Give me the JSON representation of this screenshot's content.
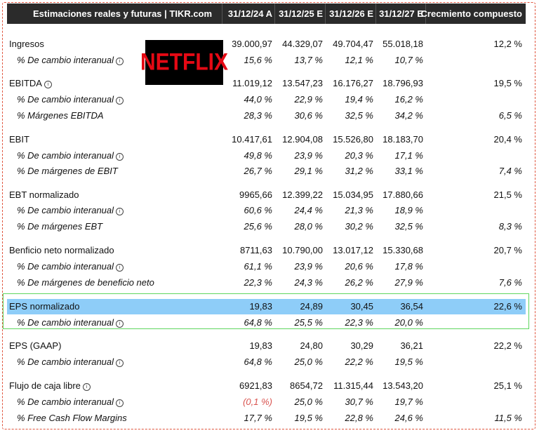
{
  "header": {
    "title": "Estimaciones reales y futuras | TIKR.com",
    "columns": [
      "31/12/24 A",
      "31/12/25 E",
      "31/12/26 E",
      "31/12/27 E",
      "Crecmiento compuesto"
    ]
  },
  "logo": {
    "text": "NETFLIX"
  },
  "rows": [
    {
      "label": "Ingresos",
      "v": [
        "39.000,97",
        "44.329,07",
        "49.704,47",
        "55.018,18",
        "12,2 %"
      ]
    },
    {
      "label": "% De cambio interanual",
      "v": [
        "15,6 %",
        "13,7 %",
        "12,1 %",
        "10,7 %",
        ""
      ]
    },
    {
      "label": "EBITDA",
      "v": [
        "11.019,12",
        "13.547,23",
        "16.176,27",
        "18.796,93",
        "19,5 %"
      ]
    },
    {
      "label": "% De cambio interanual",
      "v": [
        "44,0 %",
        "22,9 %",
        "19,4 %",
        "16,2 %",
        ""
      ]
    },
    {
      "label": "% Márgenes EBITDA",
      "v": [
        "28,3 %",
        "30,6 %",
        "32,5 %",
        "34,2 %",
        "6,5 %"
      ]
    },
    {
      "label": "EBIT",
      "v": [
        "10.417,61",
        "12.904,08",
        "15.526,80",
        "18.183,70",
        "20,4 %"
      ]
    },
    {
      "label": "% De cambio interanual",
      "v": [
        "49,8 %",
        "23,9 %",
        "20,3 %",
        "17,1 %",
        ""
      ]
    },
    {
      "label": "% De márgenes de EBIT",
      "v": [
        "26,7 %",
        "29,1 %",
        "31,2 %",
        "33,1 %",
        "7,4 %"
      ]
    },
    {
      "label": "EBT normalizado",
      "v": [
        "9965,66",
        "12.399,22",
        "15.034,95",
        "17.880,66",
        "21,5 %"
      ]
    },
    {
      "label": "% De cambio interanual",
      "v": [
        "60,6 %",
        "24,4 %",
        "21,3 %",
        "18,9 %",
        ""
      ]
    },
    {
      "label": "% De márgenes EBT",
      "v": [
        "25,6 %",
        "28,0 %",
        "30,2 %",
        "32,5 %",
        "8,3 %"
      ]
    },
    {
      "label": "Benficio neto normalizado",
      "v": [
        "8711,63",
        "10.790,00",
        "13.017,12",
        "15.330,68",
        "20,7 %"
      ]
    },
    {
      "label": "% De cambio interanual",
      "v": [
        "61,1 %",
        "23,9 %",
        "20,6 %",
        "17,8 %",
        ""
      ]
    },
    {
      "label": "% De márgenes de beneficio neto",
      "v": [
        "22,3 %",
        "24,3 %",
        "26,2 %",
        "27,9 %",
        "7,6 %"
      ]
    },
    {
      "label": "EPS normalizado",
      "v": [
        "19,83",
        "24,89",
        "30,45",
        "36,54",
        "22,6 %"
      ]
    },
    {
      "label": "% De cambio interanual",
      "v": [
        "64,8 %",
        "25,5 %",
        "22,3 %",
        "20,0 %",
        ""
      ]
    },
    {
      "label": "EPS (GAAP)",
      "v": [
        "19,83",
        "24,80",
        "30,29",
        "36,21",
        "22,2 %"
      ]
    },
    {
      "label": "% De cambio interanual",
      "v": [
        "64,8 %",
        "25,0 %",
        "22,2 %",
        "19,5 %",
        ""
      ]
    },
    {
      "label": "Flujo de caja libre",
      "v": [
        "6921,83",
        "8654,72",
        "11.315,44",
        "13.543,20",
        "25,1 %"
      ]
    },
    {
      "label": "% De cambio interanual",
      "v": [
        "(0,1 %)",
        "25,0 %",
        "30,7 %",
        "19,7 %",
        ""
      ]
    },
    {
      "label": "% Free Cash Flow Margins",
      "v": [
        "17,7 %",
        "19,5 %",
        "22,8 %",
        "24,6 %",
        "11,5 %"
      ]
    }
  ],
  "colors": {
    "header_bg": "#2b2b2b",
    "highlight": "#8ecdf8",
    "negative": "#d9534f",
    "green_box": "#5fd65f",
    "outer_border": "#e0553e"
  }
}
